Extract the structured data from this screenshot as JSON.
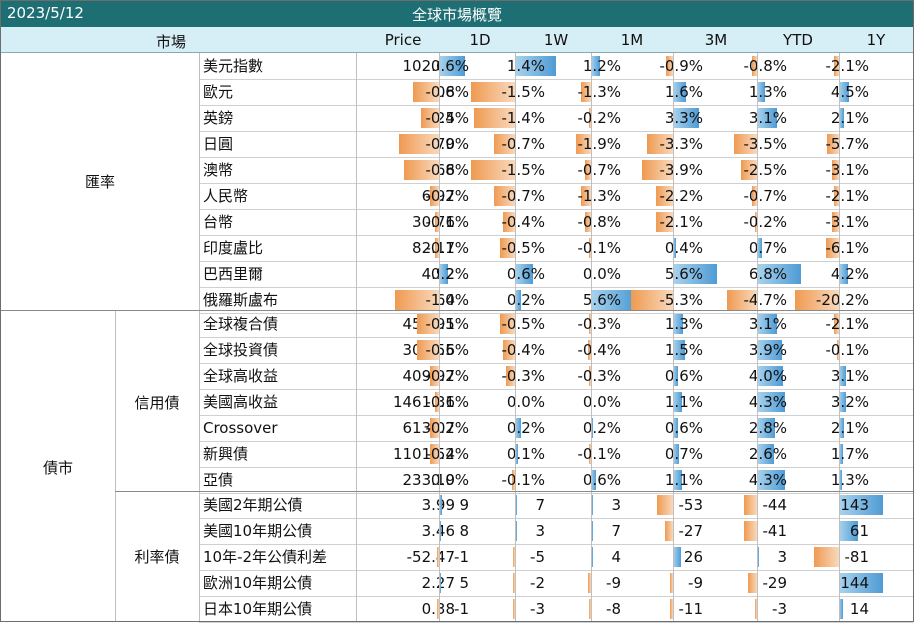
{
  "header": {
    "date": "2023/5/12",
    "title": "全球市場概覽"
  },
  "columns": [
    "市場",
    "Price",
    "1D",
    "1W",
    "1M",
    "3M",
    "YTD",
    "1Y"
  ],
  "groups": {
    "fx": "匯率",
    "bond": "債市",
    "credit": "信用債",
    "rates": "利率債"
  },
  "rows": [
    {
      "name": "美元指數",
      "price": "102.68",
      "v": [
        "0.6%",
        "1.4%",
        "1.2%",
        "-0.9%",
        "-0.8%",
        "-2.1%"
      ],
      "n": [
        0.6,
        1.4,
        1.2,
        -0.9,
        -0.8,
        -2.1
      ]
    },
    {
      "name": "歐元",
      "price": "1.08",
      "v": [
        "-0.6%",
        "-1.5%",
        "-1.3%",
        "1.6%",
        "1.3%",
        "4.5%"
      ],
      "n": [
        -0.6,
        -1.5,
        -1.3,
        1.6,
        1.3,
        4.5
      ]
    },
    {
      "name": "英鎊",
      "price": "1.25",
      "v": [
        "-0.4%",
        "-1.4%",
        "-0.2%",
        "3.3%",
        "3.1%",
        "2.1%"
      ],
      "n": [
        -0.4,
        -1.4,
        -0.2,
        3.3,
        3.1,
        2.1
      ]
    },
    {
      "name": "日圓",
      "price": "135.70",
      "v": [
        "-0.9%",
        "-0.7%",
        "-1.9%",
        "-3.3%",
        "-3.5%",
        "-5.7%"
      ],
      "n": [
        -0.9,
        -0.7,
        -1.9,
        -3.3,
        -3.5,
        -5.7
      ]
    },
    {
      "name": "澳幣",
      "price": "0.66",
      "v": [
        "-0.8%",
        "-1.5%",
        "-0.7%",
        "-3.9%",
        "-2.5%",
        "-3.1%"
      ],
      "n": [
        -0.8,
        -1.5,
        -0.7,
        -3.9,
        -2.5,
        -3.1
      ]
    },
    {
      "name": "人民幣",
      "price": "6.97",
      "v": [
        "-0.2%",
        "-0.7%",
        "-1.3%",
        "-2.2%",
        "-0.7%",
        "-2.1%"
      ],
      "n": [
        -0.2,
        -0.7,
        -1.3,
        -2.2,
        -0.7,
        -2.1
      ]
    },
    {
      "name": "台幣",
      "price": "30.76",
      "v": [
        "-0.1%",
        "-0.4%",
        "-0.8%",
        "-2.1%",
        "-0.2%",
        "-3.1%"
      ],
      "n": [
        -0.1,
        -0.4,
        -0.8,
        -2.1,
        -0.2,
        -3.1
      ]
    },
    {
      "name": "印度盧比",
      "price": "82.17",
      "v": [
        "-0.1%",
        "-0.5%",
        "-0.1%",
        "0.4%",
        "0.7%",
        "-6.1%"
      ],
      "n": [
        -0.1,
        -0.5,
        -0.1,
        0.4,
        0.7,
        -6.1
      ]
    },
    {
      "name": "巴西里爾",
      "price": "4.92",
      "v": [
        "0.2%",
        "0.6%",
        "0.0%",
        "5.6%",
        "6.8%",
        "4.2%"
      ],
      "n": [
        0.2,
        0.6,
        0.0,
        5.6,
        6.8,
        4.2
      ]
    },
    {
      "name": "俄羅斯盧布",
      "price": "77.64",
      "v": [
        "-1.0%",
        "0.2%",
        "5.6%",
        "-5.3%",
        "-4.7%",
        "-20.2%"
      ],
      "n": [
        -1.0,
        0.2,
        5.6,
        -5.3,
        -4.7,
        -20.2
      ]
    },
    {
      "name": "全球複合債",
      "price": "459.91",
      "v": [
        "-0.5%",
        "-0.5%",
        "-0.3%",
        "1.3%",
        "3.1%",
        "-2.1%"
      ],
      "n": [
        -0.5,
        -0.5,
        -0.3,
        1.3,
        3.1,
        -2.1
      ]
    },
    {
      "name": "全球投資債",
      "price": "305.56",
      "v": [
        "-0.5%",
        "-0.4%",
        "-0.4%",
        "1.5%",
        "3.9%",
        "-0.1%"
      ],
      "n": [
        -0.5,
        -0.4,
        -0.4,
        1.5,
        3.9,
        -0.1
      ]
    },
    {
      "name": "全球高收益",
      "price": "409.97",
      "v": [
        "-0.2%",
        "-0.3%",
        "-0.3%",
        "0.6%",
        "4.0%",
        "3.1%"
      ],
      "n": [
        -0.2,
        -0.3,
        -0.3,
        0.6,
        4.0,
        3.1
      ]
    },
    {
      "name": "美國高收益",
      "price": "1461.36",
      "v": [
        "-0.1%",
        "0.0%",
        "0.0%",
        "1.1%",
        "4.3%",
        "3.2%"
      ],
      "n": [
        -0.1,
        0.0,
        0.0,
        1.1,
        4.3,
        3.2
      ]
    },
    {
      "name": "Crossover",
      "price": "613.07",
      "v": [
        "-0.2%",
        "0.2%",
        "0.2%",
        "0.6%",
        "2.8%",
        "2.1%"
      ],
      "n": [
        -0.2,
        0.2,
        0.2,
        0.6,
        2.8,
        2.1
      ]
    },
    {
      "name": "新興債",
      "price": "1101.54",
      "v": [
        "-0.2%",
        "0.1%",
        "-0.1%",
        "0.7%",
        "2.6%",
        "1.7%"
      ],
      "n": [
        -0.2,
        0.1,
        -0.1,
        0.7,
        2.6,
        1.7
      ]
    },
    {
      "name": "亞債",
      "price": "233.19",
      "v": [
        "0.0%",
        "-0.1%",
        "0.6%",
        "1.1%",
        "4.3%",
        "1.3%"
      ],
      "n": [
        0.0,
        -0.1,
        0.6,
        1.1,
        4.3,
        1.3
      ]
    },
    {
      "name": "美國2年期公債",
      "price": "3.99",
      "v": [
        "9",
        "7",
        "3",
        "-53",
        "-44",
        "143"
      ],
      "n": [
        9,
        7,
        3,
        -53,
        -44,
        143
      ]
    },
    {
      "name": "美國10年期公債",
      "price": "3.46",
      "v": [
        "8",
        "3",
        "7",
        "-27",
        "-41",
        "61"
      ],
      "n": [
        8,
        3,
        7,
        -27,
        -41,
        61
      ]
    },
    {
      "name": "10年-2年公債利差",
      "price": "-52.47",
      "v": [
        "-1",
        "-5",
        "4",
        "26",
        "3",
        "-81"
      ],
      "n": [
        -1,
        -5,
        4,
        26,
        3,
        -81
      ]
    },
    {
      "name": "歐洲10年期公債",
      "price": "2.27",
      "v": [
        "5",
        "-2",
        "-9",
        "-9",
        "-29",
        "144"
      ],
      "n": [
        5,
        -2,
        -9,
        -9,
        -29,
        144
      ]
    },
    {
      "name": "日本10年期公債",
      "price": "0.38",
      "v": [
        "-1",
        "-3",
        "-8",
        "-11",
        "-3",
        "14"
      ],
      "n": [
        -1,
        -3,
        -8,
        -11,
        -3,
        14
      ]
    }
  ]
}
